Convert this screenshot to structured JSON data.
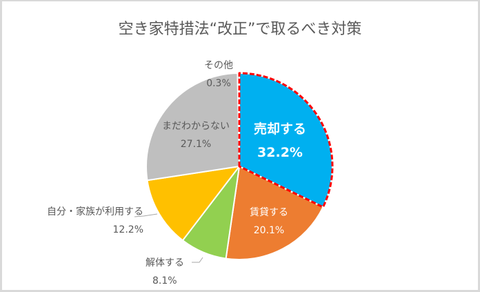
{
  "title": "空き家特措法“改正”で取るべき対策",
  "chart_data": {
    "type": "pie",
    "title": "空き家特措法“改正”で取るべき対策",
    "start_angle": "12 o'clock",
    "direction": "clockwise",
    "legend": "none (data labels on/near slices)",
    "categories": [
      "売却する",
      "賃貸する",
      "解体する",
      "自分・家族が利用する",
      "まだわからない",
      "その他"
    ],
    "values": [
      32.2,
      20.1,
      8.1,
      12.2,
      27.1,
      0.3
    ],
    "unit": "%",
    "slices": [
      {
        "label": "売却する",
        "value": 32.2,
        "display": "32.2%",
        "color": "#00b0f0",
        "highlight": "red dashed outline"
      },
      {
        "label": "賃貸する",
        "value": 20.1,
        "display": "20.1%",
        "color": "#ed7d31"
      },
      {
        "label": "解体する",
        "value": 8.1,
        "display": "8.1%",
        "color": "#92d050"
      },
      {
        "label": "自分・家族が利用する",
        "value": 12.2,
        "display": "12.2%",
        "color": "#ffc000"
      },
      {
        "label": "まだわからない",
        "value": 27.1,
        "display": "27.1%",
        "color": "#bfbfbf"
      },
      {
        "label": "その他",
        "value": 0.3,
        "display": "0.3%",
        "color": "#a5a5a5"
      }
    ],
    "highlight_color": "#ff0000"
  }
}
